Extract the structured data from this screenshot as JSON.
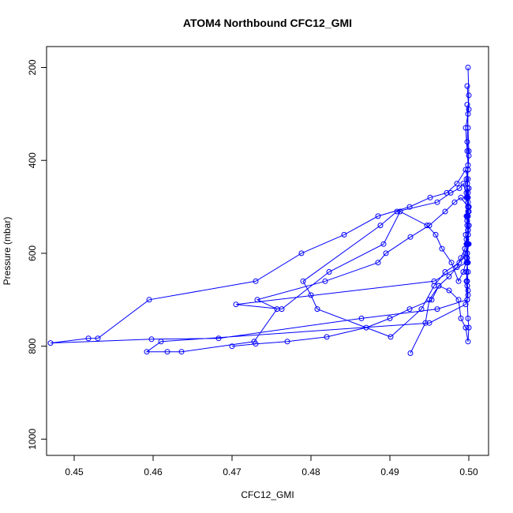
{
  "chart_data": {
    "type": "line",
    "title": "ATOM4 Northbound CFC12_GMI",
    "xlabel": "CFC12_GMI",
    "ylabel": "Pressure (mbar)",
    "xlim": [
      0.4465,
      0.5025
    ],
    "ylim": [
      1035,
      155
    ],
    "y_inverted": true,
    "grid": false,
    "legend": "none",
    "x_ticks": [
      {
        "value": 0.45,
        "label": "0.45"
      },
      {
        "value": 0.46,
        "label": "0.46"
      },
      {
        "value": 0.47,
        "label": "0.47"
      },
      {
        "value": 0.48,
        "label": "0.48"
      },
      {
        "value": 0.49,
        "label": "0.49"
      },
      {
        "value": 0.5,
        "label": "0.50"
      }
    ],
    "y_ticks": [
      {
        "value": 200,
        "label": "200"
      },
      {
        "value": 400,
        "label": "400"
      },
      {
        "value": 600,
        "label": "600"
      },
      {
        "value": 800,
        "label": "800"
      },
      {
        "value": 1000,
        "label": "1000"
      }
    ],
    "series": [
      {
        "color": "#0000ff",
        "marker": "open-circle",
        "x": [
          0.4998,
          0.5,
          0.4996,
          0.4998,
          0.4999,
          0.4997,
          0.4999,
          0.5,
          0.4998,
          0.4999,
          0.4997,
          0.4998,
          0.4993,
          0.4987,
          0.4978,
          0.4966,
          0.4958,
          0.4947,
          0.4913,
          0.4892,
          0.4823,
          0.4763,
          0.4705,
          0.4956,
          0.4997,
          0.4998,
          0.4996,
          0.4998,
          0.4999,
          0.4997,
          0.4998,
          0.4999,
          0.4996,
          0.4985,
          0.4972,
          0.4951,
          0.4925,
          0.4885,
          0.4842,
          0.4788,
          0.473,
          0.4595,
          0.453,
          0.4518,
          0.447,
          0.4598,
          0.4683,
          0.4864,
          0.496,
          0.4998,
          0.4999,
          0.4998,
          0.4997,
          0.4999,
          0.4998,
          0.5,
          0.4999,
          0.4998,
          0.4997,
          0.4999,
          0.499,
          0.4982,
          0.497,
          0.495,
          0.4926,
          0.4895,
          0.4885,
          0.4818,
          0.4732,
          0.4757,
          0.4728,
          0.4636,
          0.4618,
          0.4592,
          0.461,
          0.495,
          0.4996,
          0.4999,
          0.4998,
          0.4999,
          0.4997,
          0.4998,
          0.5,
          0.4999,
          0.4998,
          0.4993,
          0.4988,
          0.4977,
          0.496,
          0.4909,
          0.4888,
          0.479,
          0.48,
          0.4808,
          0.4901,
          0.494,
          0.4956,
          0.497,
          0.4988,
          0.4996,
          0.4998,
          0.4999,
          0.5,
          0.4999,
          0.5,
          0.4999,
          0.5
        ],
        "y": [
          240,
          290,
          330,
          380,
          410,
          440,
          470,
          500,
          520,
          550,
          580,
          610,
          640,
          660,
          620,
          590,
          560,
          540,
          510,
          580,
          640,
          720,
          710,
          660,
          620,
          600,
          560,
          530,
          500,
          480,
          460,
          440,
          420,
          450,
          470,
          480,
          500,
          520,
          560,
          600,
          660,
          700,
          783,
          783,
          793,
          785,
          783,
          740,
          720,
          700,
          680,
          660,
          640,
          620,
          600,
          580,
          560,
          540,
          520,
          500,
          480,
          490,
          510,
          540,
          565,
          600,
          620,
          660,
          700,
          720,
          790,
          812,
          812,
          812,
          790,
          750,
          710,
          690,
          670,
          640,
          610,
          580,
          540,
          510,
          480,
          450,
          460,
          470,
          490,
          510,
          540,
          660,
          690,
          720,
          780,
          720,
          670,
          640,
          620,
          600,
          580,
          560,
          540,
          520,
          500,
          480,
          460
        ]
      },
      {
        "color": "#0000ff",
        "marker": "open-circle",
        "x": [
          0.4999,
          0.5,
          0.4999,
          0.4998,
          0.5,
          0.4999,
          0.4998,
          0.4997,
          0.4999,
          0.5,
          0.4998,
          0.4999,
          0.4997,
          0.4995,
          0.499,
          0.4985,
          0.4975,
          0.4962,
          0.4953,
          0.4925,
          0.49,
          0.487,
          0.482,
          0.477,
          0.473,
          0.47
        ],
        "y": [
          200,
          260,
          300,
          360,
          390,
          420,
          450,
          470,
          490,
          510,
          530,
          550,
          570,
          590,
          610,
          630,
          650,
          670,
          700,
          720,
          740,
          760,
          780,
          790,
          795,
          800
        ]
      },
      {
        "color": "#0000ff",
        "marker": "open-circle",
        "x": [
          0.4998,
          0.4999,
          0.5,
          0.4999,
          0.4998,
          0.4999,
          0.5,
          0.4999,
          0.4998,
          0.4997,
          0.4998,
          0.4999,
          0.5,
          0.4999,
          0.4996,
          0.499,
          0.4987,
          0.4975,
          0.4962,
          0.495,
          0.4945,
          0.4926
        ],
        "y": [
          280,
          330,
          380,
          420,
          460,
          500,
          540,
          580,
          620,
          660,
          700,
          740,
          760,
          790,
          760,
          740,
          700,
          680,
          670,
          700,
          750,
          815
        ]
      }
    ]
  }
}
